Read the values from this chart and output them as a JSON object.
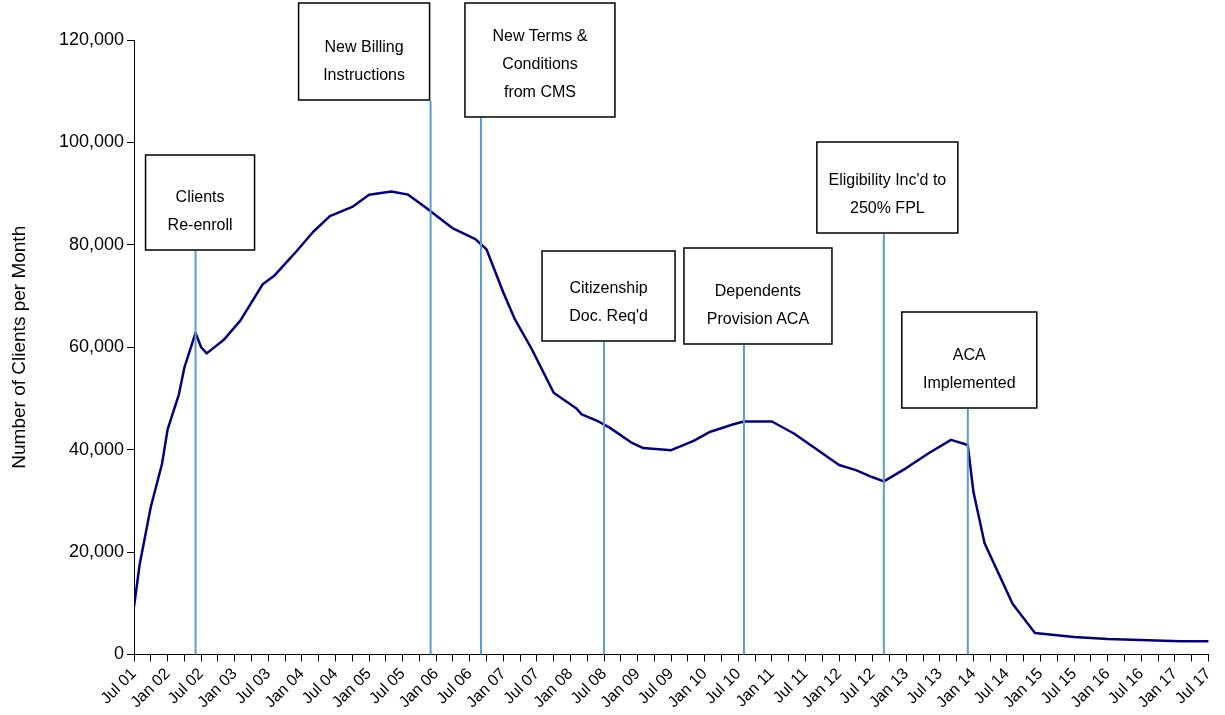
{
  "chart_data": {
    "type": "line",
    "ylabel": "Number of Clients per Month",
    "legend": false,
    "grid": false,
    "marker": "none",
    "line_style": "solid",
    "series": [
      {
        "color": "#000080",
        "x": [
          "2001-07",
          "2001-08",
          "2001-10",
          "2001-12",
          "2002-01",
          "2002-03",
          "2002-04",
          "2002-06",
          "2002-07",
          "2002-08",
          "2002-11",
          "2003-02",
          "2003-06",
          "2003-08",
          "2003-12",
          "2004-03",
          "2004-06",
          "2004-10",
          "2005-01",
          "2005-05",
          "2005-08",
          "2005-11",
          "2006-04",
          "2006-08",
          "2006-10",
          "2007-01",
          "2007-03",
          "2007-06",
          "2007-10",
          "2008-02",
          "2008-03",
          "2008-06",
          "2008-08",
          "2008-12",
          "2009-02",
          "2009-07",
          "2009-11",
          "2010-02",
          "2010-06",
          "2010-08",
          "2011-01",
          "2011-05",
          "2011-10",
          "2012-01",
          "2012-04",
          "2012-07",
          "2012-09",
          "2013-01",
          "2013-05",
          "2013-09",
          "2013-12",
          "2014-01",
          "2014-03",
          "2014-08",
          "2014-12",
          "2015-07",
          "2016-01",
          "2017-02",
          "2017-07"
        ],
        "values": [
          9300,
          17500,
          28800,
          37200,
          43900,
          50700,
          56000,
          62800,
          60000,
          58800,
          61400,
          65200,
          72300,
          73900,
          78700,
          82500,
          85600,
          87400,
          89800,
          90400,
          89800,
          87400,
          83200,
          81100,
          79100,
          70700,
          65600,
          59800,
          51100,
          48100,
          46900,
          45500,
          44300,
          41300,
          40300,
          39900,
          41700,
          43500,
          44900,
          45500,
          45500,
          43100,
          39300,
          37000,
          36000,
          34600,
          33800,
          36400,
          39300,
          41900,
          40900,
          31800,
          21700,
          9900,
          4200,
          3400,
          3000,
          2600,
          2600
        ]
      }
    ],
    "xlim": [
      "2001-07",
      "2017-07"
    ],
    "xticks": [
      {
        "value": "2001-07",
        "label": "Jul 01"
      },
      {
        "value": "2001-10",
        "label": null
      },
      {
        "value": "2002-01",
        "label": "Jan 02"
      },
      {
        "value": "2002-04",
        "label": null
      },
      {
        "value": "2002-07",
        "label": "Jul 02"
      },
      {
        "value": "2002-10",
        "label": null
      },
      {
        "value": "2003-01",
        "label": "Jan 03"
      },
      {
        "value": "2003-04",
        "label": null
      },
      {
        "value": "2003-07",
        "label": "Jul 03"
      },
      {
        "value": "2003-10",
        "label": null
      },
      {
        "value": "2004-01",
        "label": "Jan 04"
      },
      {
        "value": "2004-04",
        "label": null
      },
      {
        "value": "2004-07",
        "label": "Jul 04"
      },
      {
        "value": "2004-10",
        "label": null
      },
      {
        "value": "2005-01",
        "label": "Jan 05"
      },
      {
        "value": "2005-04",
        "label": null
      },
      {
        "value": "2005-07",
        "label": "Jul 05"
      },
      {
        "value": "2005-10",
        "label": null
      },
      {
        "value": "2006-01",
        "label": "Jan 06"
      },
      {
        "value": "2006-04",
        "label": null
      },
      {
        "value": "2006-07",
        "label": "Jul 06"
      },
      {
        "value": "2006-10",
        "label": null
      },
      {
        "value": "2007-01",
        "label": "Jan 07"
      },
      {
        "value": "2007-04",
        "label": null
      },
      {
        "value": "2007-07",
        "label": "Jul 07"
      },
      {
        "value": "2007-10",
        "label": null
      },
      {
        "value": "2008-01",
        "label": "Jan 08"
      },
      {
        "value": "2008-04",
        "label": null
      },
      {
        "value": "2008-07",
        "label": "Jul 08"
      },
      {
        "value": "2008-10",
        "label": null
      },
      {
        "value": "2009-01",
        "label": "Jan 09"
      },
      {
        "value": "2009-04",
        "label": null
      },
      {
        "value": "2009-07",
        "label": "Jul 09"
      },
      {
        "value": "2009-10",
        "label": null
      },
      {
        "value": "2010-01",
        "label": "Jan 10"
      },
      {
        "value": "2010-04",
        "label": null
      },
      {
        "value": "2010-07",
        "label": "Jul 10"
      },
      {
        "value": "2010-10",
        "label": null
      },
      {
        "value": "2011-01",
        "label": "Jan 11"
      },
      {
        "value": "2011-04",
        "label": null
      },
      {
        "value": "2011-07",
        "label": "Jul 11"
      },
      {
        "value": "2011-10",
        "label": null
      },
      {
        "value": "2012-01",
        "label": "Jan 12"
      },
      {
        "value": "2012-04",
        "label": null
      },
      {
        "value": "2012-07",
        "label": "Jul 12"
      },
      {
        "value": "2012-10",
        "label": null
      },
      {
        "value": "2013-01",
        "label": "Jan 13"
      },
      {
        "value": "2013-04",
        "label": null
      },
      {
        "value": "2013-07",
        "label": "Jul 13"
      },
      {
        "value": "2013-10",
        "label": null
      },
      {
        "value": "2014-01",
        "label": "Jan 14"
      },
      {
        "value": "2014-04",
        "label": null
      },
      {
        "value": "2014-07",
        "label": "Jul 14"
      },
      {
        "value": "2014-10",
        "label": null
      },
      {
        "value": "2015-01",
        "label": "Jan 15"
      },
      {
        "value": "2015-04",
        "label": null
      },
      {
        "value": "2015-07",
        "label": "Jul 15"
      },
      {
        "value": "2015-10",
        "label": null
      },
      {
        "value": "2016-01",
        "label": "Jan 16"
      },
      {
        "value": "2016-04",
        "label": null
      },
      {
        "value": "2016-07",
        "label": "Jul 16"
      },
      {
        "value": "2016-10",
        "label": null
      },
      {
        "value": "2017-01",
        "label": "Jan 17"
      },
      {
        "value": "2017-04",
        "label": null
      },
      {
        "value": "2017-07",
        "label": "Jul 17"
      }
    ],
    "ylim": [
      0,
      120000
    ],
    "yticks": [
      {
        "value": 0,
        "label": "0"
      },
      {
        "value": 20000,
        "label": "20,000"
      },
      {
        "value": 40000,
        "label": "40,000"
      },
      {
        "value": 60000,
        "label": "60,000"
      },
      {
        "value": 80000,
        "label": "80,000"
      },
      {
        "value": 100000,
        "label": "100,000"
      },
      {
        "value": 120000,
        "label": "120,000"
      }
    ],
    "ref_lines": [
      {
        "axis": "x",
        "value": "2002-06",
        "label": "Clients Re-enroll",
        "color": "#5b9bd5"
      },
      {
        "axis": "x",
        "value": "2005-12",
        "label": "New Billing Instructions",
        "color": "#5b9bd5"
      },
      {
        "axis": "x",
        "value": "2006-09",
        "label": "New Terms & Conditions from CMS",
        "color": "#5b9bd5"
      },
      {
        "axis": "x",
        "value": "2008-07",
        "label": "Citizenship Doc. Req'd",
        "color": "#5b9bd5"
      },
      {
        "axis": "x",
        "value": "2010-08",
        "label": "Dependents Provision ACA",
        "color": "#5b9bd5"
      },
      {
        "axis": "x",
        "value": "2012-09",
        "label": "Eligibility Inc'd to 250% FPL",
        "color": "#5b9bd5"
      },
      {
        "axis": "x",
        "value": "2013-12",
        "label": "ACA Implemented",
        "color": "#5b9bd5"
      }
    ]
  }
}
